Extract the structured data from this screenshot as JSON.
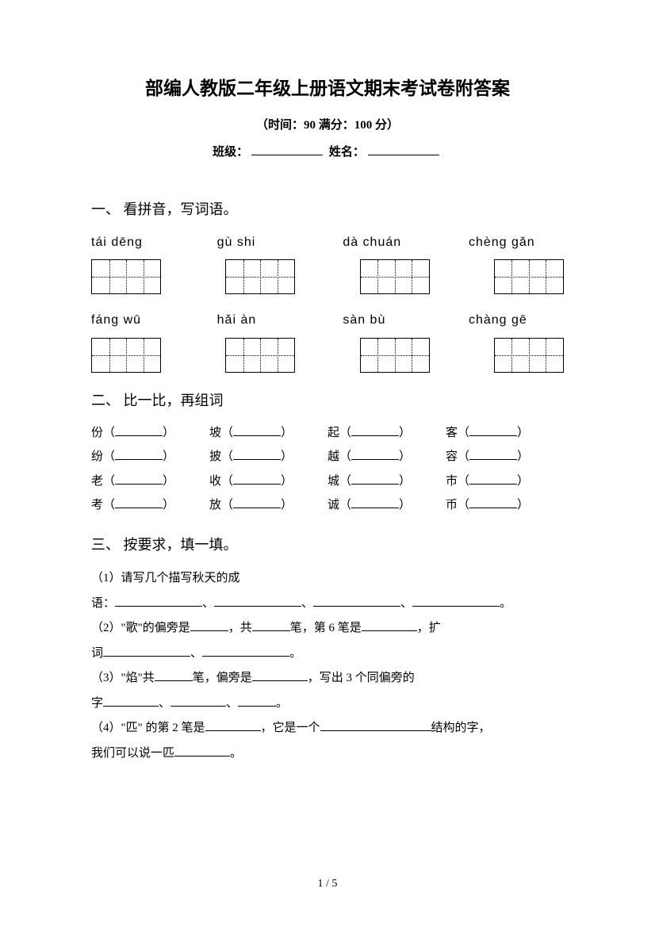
{
  "title": "部编人教版二年级上册语文期末考试卷附答案",
  "subtitle": "（时间：90   满分：100 分）",
  "info": {
    "class_label": "班级：",
    "name_label": "姓名："
  },
  "section1": {
    "head": "一、 看拼音，写词语。",
    "row1": [
      "tái   dēng",
      "gù   shi",
      "dà   chuán",
      "chèng gǎn"
    ],
    "row2": [
      "fáng   wū",
      "hǎi   àn",
      "sàn   bù",
      "chàng  gē"
    ]
  },
  "section2": {
    "head": "二、 比一比，再组词",
    "rows": [
      [
        "份（",
        "坡（",
        "起（",
        "客（"
      ],
      [
        "纷（",
        "披（",
        "越（",
        "容（"
      ],
      [
        "老（",
        "收（",
        "城（",
        "市（"
      ],
      [
        "考（",
        "放（",
        "诚（",
        "币（"
      ]
    ],
    "close": "）"
  },
  "section3": {
    "head": "三、 按要求，填一填。",
    "q1a": "（1）请写几个描写秋天的成",
    "q1b": "语：",
    "sep": "、",
    "period": "。",
    "q2a": "（2）\"歌\"的偏旁是",
    "q2b": "，共",
    "q2c": "笔，第 6 笔是",
    "q2d": "，扩",
    "q2e": "词",
    "q3a": "（3）\"焰\"共",
    "q3b": "笔，偏旁是",
    "q3c": "，写出 3 个同偏旁的",
    "q3d": "字",
    "q4a": "（4）\"匹\" 的第 2 笔是",
    "q4b": "，它是一个",
    "q4c": "结构的字，",
    "q4d": "我们可以说一匹"
  },
  "pagenum": "1 / 5"
}
